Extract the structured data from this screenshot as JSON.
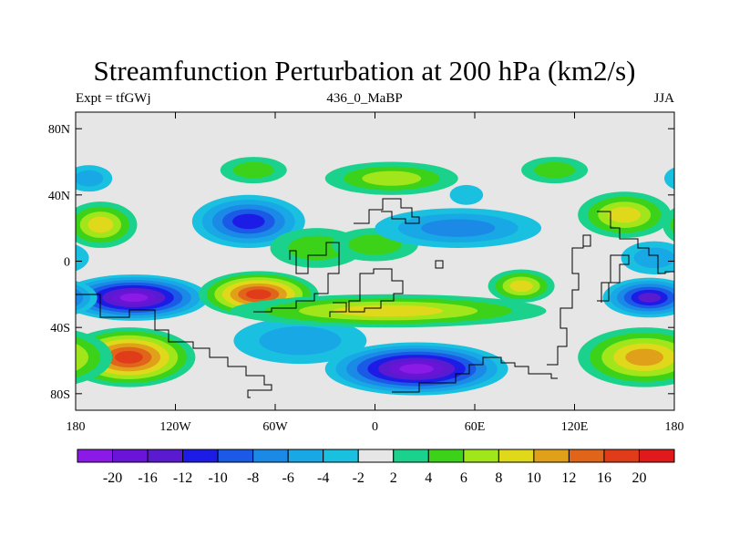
{
  "title": "Streamfunction Perturbation at 200 hPa (km2/s)",
  "left_string": "Expt = tfGWj",
  "center_string": "436_0_MaBP",
  "right_string": "JJA",
  "lat_ticks": [
    {
      "lat": 80,
      "label": "80N"
    },
    {
      "lat": 40,
      "label": "40N"
    },
    {
      "lat": 0,
      "label": "0"
    },
    {
      "lat": -40,
      "label": "40S"
    },
    {
      "lat": -80,
      "label": "80S"
    }
  ],
  "lon_ticks": [
    {
      "lon": -180,
      "label": "180"
    },
    {
      "lon": -120,
      "label": "120W"
    },
    {
      "lon": -60,
      "label": "60W"
    },
    {
      "lon": 0,
      "label": "0"
    },
    {
      "lon": 60,
      "label": "60E"
    },
    {
      "lon": 120,
      "label": "120E"
    },
    {
      "lon": 180,
      "label": "180"
    }
  ],
  "colorbar": {
    "colors": [
      "#8c1ae6",
      "#6a14d8",
      "#5a1ad0",
      "#1c1ce6",
      "#1a5ae6",
      "#1a8ae6",
      "#18a8e6",
      "#1ac0e0",
      "#e6e6e6",
      "#1ad28c",
      "#3cd21a",
      "#a0e61a",
      "#e0d81a",
      "#e0a01a",
      "#e0641a",
      "#e03c1a",
      "#e01a1a"
    ],
    "labels": [
      "-20",
      "-16",
      "-12",
      "-10",
      "-8",
      "-6",
      "-4",
      "-2",
      "2",
      "4",
      "6",
      "8",
      "10",
      "12",
      "16",
      "20"
    ]
  },
  "chart_data": {
    "type": "heatmap",
    "variable": "Streamfunction Perturbation at 200 hPa",
    "units": "km2/s",
    "experiment": "tfGWj",
    "case": "436_0_MaBP",
    "season": "JJA",
    "contour_levels": [
      -20,
      -16,
      -12,
      -10,
      -8,
      -6,
      -4,
      -2,
      2,
      4,
      6,
      8,
      10,
      12,
      16,
      20
    ],
    "lon_range": [
      -180,
      180
    ],
    "lat_range": [
      -90,
      90
    ],
    "features": [
      {
        "lon": -145,
        "lat": -22,
        "value": -20,
        "dlon": 45,
        "dlat": 14
      },
      {
        "lon": -165,
        "lat": 22,
        "value": 8,
        "dlon": 22,
        "dlat": 14
      },
      {
        "lon": -148,
        "lat": -58,
        "value": 16,
        "dlon": 40,
        "dlat": 18
      },
      {
        "lon": -172,
        "lat": 50,
        "value": -5,
        "dlon": 14,
        "dlat": 8
      },
      {
        "lon": -76,
        "lat": 24,
        "value": -10,
        "dlon": 34,
        "dlat": 16
      },
      {
        "lon": -70,
        "lat": -20,
        "value": 16,
        "dlon": 36,
        "dlat": 14
      },
      {
        "lon": -73,
        "lat": 55,
        "value": 4,
        "dlon": 20,
        "dlat": 8
      },
      {
        "lon": -45,
        "lat": -48,
        "value": -4,
        "dlon": 40,
        "dlat": 14
      },
      {
        "lon": -35,
        "lat": 8,
        "value": 5,
        "dlon": 28,
        "dlat": 12
      },
      {
        "lon": 0,
        "lat": 10,
        "value": 4,
        "dlon": 26,
        "dlat": 10
      },
      {
        "lon": 10,
        "lat": 50,
        "value": 6,
        "dlon": 40,
        "dlat": 10
      },
      {
        "lon": 8,
        "lat": -30,
        "value": 8,
        "dlon": 95,
        "dlat": 10
      },
      {
        "lon": 25,
        "lat": -65,
        "value": -20,
        "dlon": 55,
        "dlat": 16
      },
      {
        "lon": 50,
        "lat": 20,
        "value": -6,
        "dlon": 50,
        "dlat": 12
      },
      {
        "lon": 88,
        "lat": -15,
        "value": 8,
        "dlon": 20,
        "dlat": 10
      },
      {
        "lon": 108,
        "lat": 55,
        "value": 4,
        "dlon": 20,
        "dlat": 8
      },
      {
        "lon": 55,
        "lat": 40,
        "value": -3,
        "dlon": 10,
        "dlat": 6
      },
      {
        "lon": 150,
        "lat": 28,
        "value": 8,
        "dlon": 28,
        "dlat": 14
      },
      {
        "lon": 165,
        "lat": -22,
        "value": -12,
        "dlon": 28,
        "dlat": 12
      },
      {
        "lon": 162,
        "lat": -58,
        "value": 10,
        "dlon": 40,
        "dlat": 18
      },
      {
        "lon": 168,
        "lat": 2,
        "value": -4,
        "dlon": 20,
        "dlat": 10
      }
    ]
  }
}
